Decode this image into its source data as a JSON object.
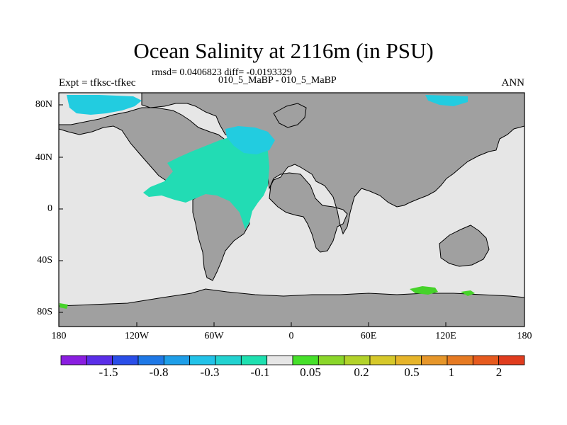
{
  "title": "Ocean Salinity at 2116m (in PSU)",
  "stats": "rmsd= 0.0406823 diff= -0.0193329",
  "case_label": "010_5_MaBP - 010_5_MaBP",
  "expt_label": "Expt = tfksc-tfkec",
  "season": "ANN",
  "lat_labels": [
    "80N",
    "40N",
    "0",
    "40S",
    "80S"
  ],
  "lon_labels": [
    "180",
    "120W",
    "60W",
    "0",
    "60E",
    "120E",
    "180"
  ],
  "colorbar": {
    "colors": [
      "#8a1ee0",
      "#5a2ee8",
      "#2a4ee8",
      "#1e78e6",
      "#1e9ee8",
      "#22c2e8",
      "#22d2d0",
      "#1ee0b0",
      "#e6e6e6",
      "#46e02a",
      "#8ad62a",
      "#b2d22a",
      "#d6c82a",
      "#e6b42a",
      "#e6962a",
      "#e67a22",
      "#e65a1e",
      "#e03c1e"
    ],
    "labels": [
      "-1.5",
      "-0.8",
      "-0.3",
      "-0.1",
      "0.05",
      "0.2",
      "0.5",
      "1",
      "2"
    ]
  },
  "colors": {
    "land": "#a0a0a0",
    "ocean_near_zero": "#e6e6e6",
    "atlantic_anomaly": "#22dcb4",
    "arctic_anomaly": "#22cce0",
    "positive_anomaly": "#46d22a"
  }
}
